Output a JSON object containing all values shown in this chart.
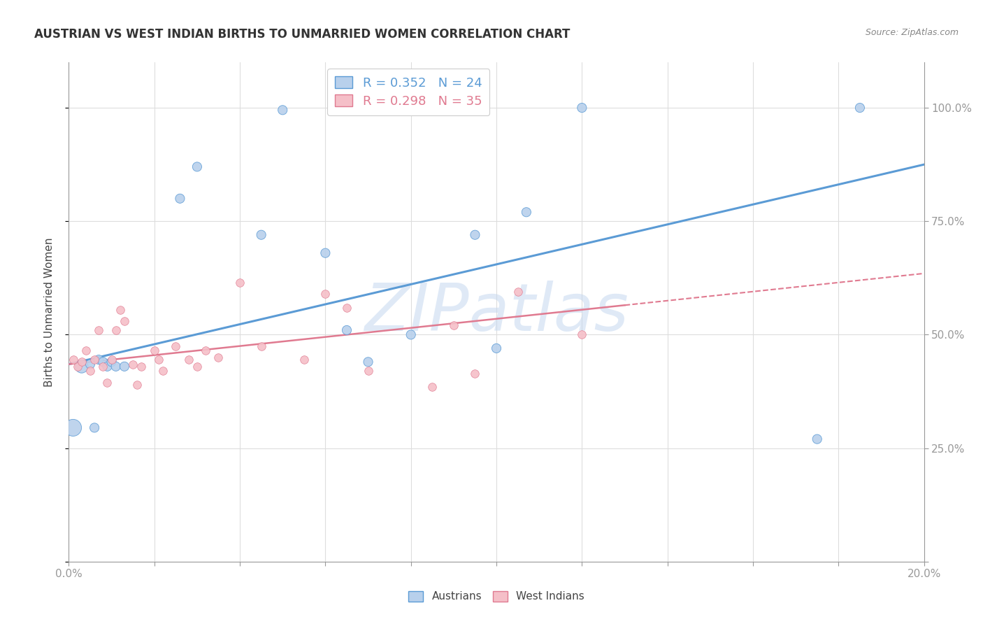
{
  "title": "AUSTRIAN VS WEST INDIAN BIRTHS TO UNMARRIED WOMEN CORRELATION CHART",
  "source": "Source: ZipAtlas.com",
  "ylabel": "Births to Unmarried Women",
  "blue_color": "#b8d0ec",
  "pink_color": "#f5bfc8",
  "trend_blue_color": "#5b9bd5",
  "trend_pink_color": "#e07a90",
  "watermark": "ZIPatlas",
  "austrians_x": [
    0.001,
    0.003,
    0.005,
    0.006,
    0.007,
    0.008,
    0.009,
    0.01,
    0.011,
    0.013,
    0.026,
    0.03,
    0.045,
    0.05,
    0.06,
    0.065,
    0.07,
    0.08,
    0.095,
    0.1,
    0.107,
    0.12,
    0.175,
    0.185
  ],
  "austrians_y": [
    0.295,
    0.43,
    0.435,
    0.295,
    0.445,
    0.44,
    0.43,
    0.44,
    0.43,
    0.43,
    0.8,
    0.87,
    0.72,
    0.995,
    0.68,
    0.51,
    0.44,
    0.5,
    0.72,
    0.47,
    0.77,
    1.0,
    0.27,
    1.0
  ],
  "west_indians_x": [
    0.001,
    0.002,
    0.003,
    0.004,
    0.005,
    0.006,
    0.007,
    0.008,
    0.009,
    0.01,
    0.011,
    0.012,
    0.013,
    0.015,
    0.016,
    0.017,
    0.02,
    0.021,
    0.022,
    0.025,
    0.028,
    0.03,
    0.032,
    0.035,
    0.04,
    0.045,
    0.055,
    0.06,
    0.065,
    0.07,
    0.085,
    0.09,
    0.095,
    0.105,
    0.12
  ],
  "west_indians_y": [
    0.445,
    0.43,
    0.44,
    0.465,
    0.42,
    0.445,
    0.51,
    0.43,
    0.395,
    0.445,
    0.51,
    0.555,
    0.53,
    0.435,
    0.39,
    0.43,
    0.465,
    0.445,
    0.42,
    0.475,
    0.445,
    0.43,
    0.465,
    0.45,
    0.615,
    0.475,
    0.445,
    0.59,
    0.56,
    0.42,
    0.385,
    0.52,
    0.415,
    0.595,
    0.5
  ],
  "trend_blue_x0": 0.0,
  "trend_blue_y0": 0.435,
  "trend_blue_x1": 0.2,
  "trend_blue_y1": 0.875,
  "trend_pink_solid_x0": 0.0,
  "trend_pink_solid_y0": 0.435,
  "trend_pink_solid_x1": 0.13,
  "trend_pink_solid_y1": 0.565,
  "trend_pink_dash_x0": 0.13,
  "trend_pink_dash_y0": 0.565,
  "trend_pink_dash_x1": 0.2,
  "trend_pink_dash_y1": 0.635,
  "xlim": [
    0.0,
    0.2
  ],
  "ylim": [
    0.0,
    1.1
  ],
  "xticks": [
    0.0,
    0.02,
    0.04,
    0.06,
    0.08,
    0.1,
    0.12,
    0.14,
    0.16,
    0.18,
    0.2
  ],
  "yticks": [
    0.0,
    0.25,
    0.5,
    0.75,
    1.0
  ],
  "ytick_labels": [
    "",
    "25.0%",
    "50.0%",
    "75.0%",
    "100.0%"
  ],
  "grid_color": "#dddddd",
  "title_fontsize": 12,
  "tick_color": "#5b9bd5",
  "axis_color": "#999999"
}
